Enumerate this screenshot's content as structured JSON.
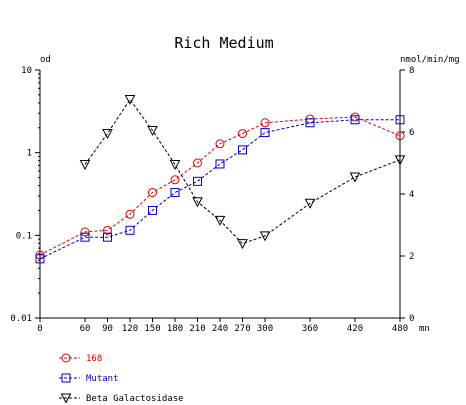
{
  "chart_data": {
    "type": "line",
    "title": "Rich Medium",
    "ylabel_left": "od",
    "ylabel_right": "nmol/min/mg",
    "xlabel": "mn",
    "x_ticks": [
      0,
      60,
      90,
      120,
      150,
      180,
      210,
      240,
      270,
      300,
      360,
      420,
      480
    ],
    "x_tick_labels": [
      "0",
      "60",
      "90",
      "120",
      "150",
      "180",
      "210",
      "240",
      "270",
      "300",
      "360",
      "420",
      "480"
    ],
    "y_left_scale": "log",
    "y_left_ticks": [
      0.01,
      0.1,
      1,
      10
    ],
    "y_left_tick_labels": [
      "0.01",
      "0.1",
      "1",
      "10"
    ],
    "y_left_lim": [
      0.01,
      10
    ],
    "y_right_scale": "linear",
    "y_right_ticks": [
      0,
      2,
      4,
      6,
      8
    ],
    "y_right_tick_labels": [
      "0",
      "2",
      "4",
      "6",
      "8"
    ],
    "y_right_lim": [
      0,
      8
    ],
    "grid": false,
    "legend_position": "bottom-left",
    "series": [
      {
        "name": "168",
        "axis": "left",
        "marker": "circle",
        "color": "#e00000",
        "x": [
          0,
          60,
          90,
          120,
          150,
          180,
          210,
          240,
          270,
          300,
          360,
          420,
          480
        ],
        "y": [
          0.058,
          0.11,
          0.115,
          0.18,
          0.33,
          0.47,
          0.75,
          1.28,
          1.7,
          2.3,
          2.55,
          2.7,
          1.6
        ]
      },
      {
        "name": "Mutant",
        "axis": "left",
        "marker": "square",
        "color": "#0000cc",
        "x": [
          0,
          60,
          90,
          120,
          150,
          180,
          210,
          240,
          270,
          300,
          360,
          420,
          480
        ],
        "y": [
          0.052,
          0.095,
          0.095,
          0.115,
          0.2,
          0.33,
          0.45,
          0.73,
          1.08,
          1.75,
          2.3,
          2.5,
          2.5
        ]
      },
      {
        "name": "Beta Galactosidase",
        "axis": "right",
        "marker": "triangle-down",
        "color": "#000000",
        "x": [
          60,
          90,
          120,
          150,
          180,
          210,
          240,
          270,
          300,
          360,
          420,
          480
        ],
        "y": [
          4.95,
          5.95,
          7.05,
          6.05,
          4.95,
          3.75,
          3.15,
          2.4,
          2.65,
          3.7,
          4.55,
          5.1
        ]
      }
    ]
  }
}
